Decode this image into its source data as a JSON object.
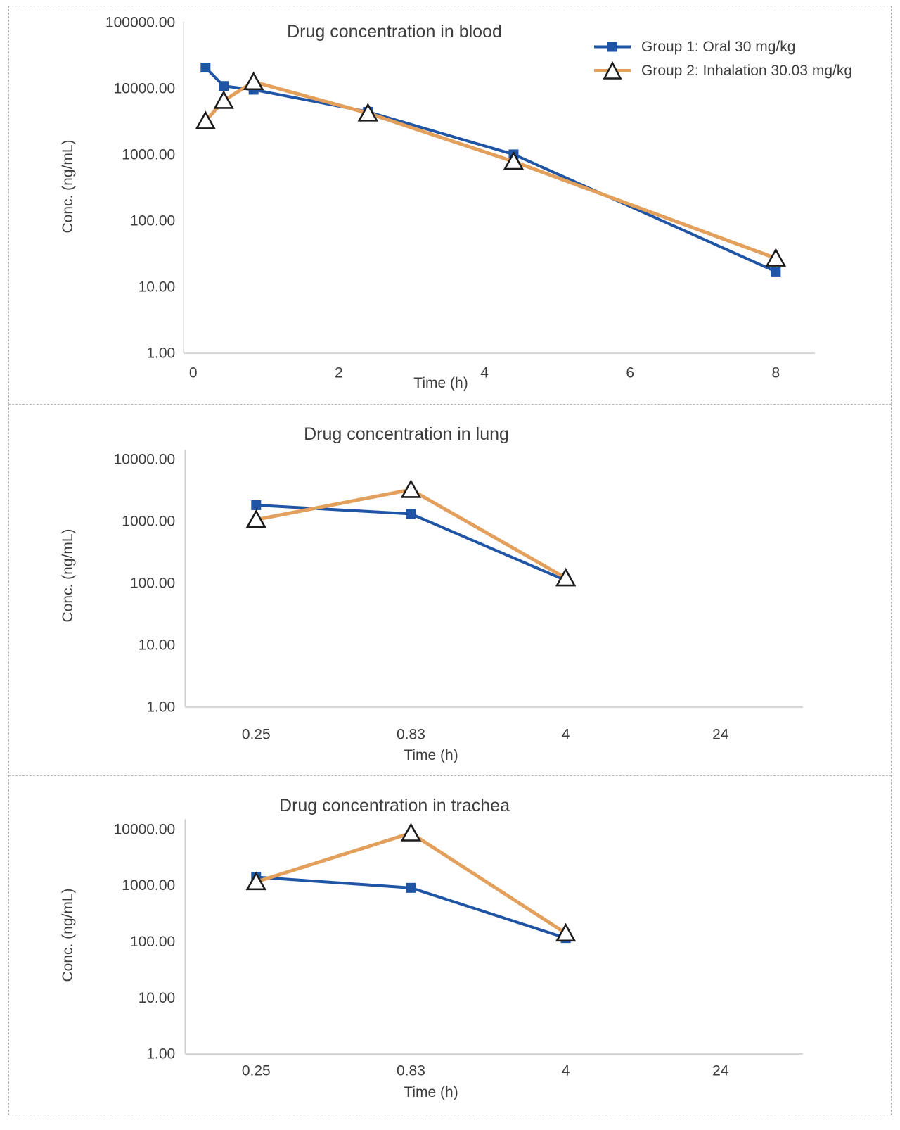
{
  "colors": {
    "group1": "#1F55A4",
    "group2": "#E2A05C",
    "marker_fill": "#FFFFFF",
    "marker_stroke": "#1C1C1C",
    "y_axis_line": "#D0D0D0",
    "x_axis_line": "#D6D6D6",
    "text": "#3D3D3D",
    "panel_border": "#B5B5B5"
  },
  "legend": {
    "items": [
      {
        "label": "Group 1: Oral 30 mg/kg"
      },
      {
        "label": "Group 2: Inhalation 30.03 mg/kg"
      }
    ]
  },
  "chart_data": [
    {
      "type": "line",
      "title": "Drug concentration in blood",
      "xlabel": "Time (h)",
      "ylabel": "Conc. (ng/mL)",
      "y_scale": "log10",
      "ylim": [
        1,
        100000
      ],
      "y_tick_labels": [
        "100000.00",
        "10000.00",
        "1000.00",
        "100.00",
        "10.00",
        "1.00"
      ],
      "x_axis": "linear",
      "xlim": [
        0,
        8.55
      ],
      "x_tick_values": [
        0,
        2,
        4,
        6,
        8
      ],
      "x_tick_labels": [
        "0",
        "2",
        "4",
        "6",
        "8"
      ],
      "grid": false,
      "legend_position": "top-right",
      "series": [
        {
          "name": "Group 1: Oral 30 mg/kg",
          "marker": "square",
          "x": [
            0.17,
            0.42,
            0.83,
            2.4,
            4.4,
            8
          ],
          "values": [
            20500,
            10800,
            9500,
            4400,
            1000,
            17
          ]
        },
        {
          "name": "Group 2: Inhalation 30.03 mg/kg",
          "marker": "triangle",
          "x": [
            0.17,
            0.42,
            0.83,
            2.4,
            4.4,
            8
          ],
          "values": [
            3200,
            6500,
            12500,
            4200,
            780,
            27
          ]
        }
      ]
    },
    {
      "type": "line",
      "title": "Drug concentration in lung",
      "xlabel": "Time (h)",
      "ylabel": "Conc. (ng/mL)",
      "y_scale": "log10",
      "ylim": [
        1,
        10000
      ],
      "y_tick_labels": [
        "10000.00",
        "1000.00",
        "100.00",
        "10.00",
        "1.00"
      ],
      "x_axis": "category",
      "categories": [
        "0.25",
        "0.83",
        "4",
        "24"
      ],
      "grid": false,
      "legend_position": "none",
      "series": [
        {
          "name": "Group 1: Oral 30 mg/kg",
          "marker": "square",
          "values": [
            1800,
            1300,
            110,
            null
          ]
        },
        {
          "name": "Group 2: Inhalation 30.03 mg/kg",
          "marker": "triangle",
          "values": [
            1050,
            3200,
            120,
            null
          ]
        }
      ]
    },
    {
      "type": "line",
      "title": "Drug concentration in trachea",
      "xlabel": "Time (h)",
      "ylabel": "Conc. (ng/mL)",
      "y_scale": "log10",
      "ylim": [
        1,
        10000
      ],
      "y_tick_labels": [
        "10000.00",
        "1000.00",
        "100.00",
        "10.00",
        "1.00"
      ],
      "x_axis": "category",
      "categories": [
        "0.25",
        "0.83",
        "4",
        "24"
      ],
      "grid": false,
      "legend_position": "none",
      "series": [
        {
          "name": "Group 1: Oral 30 mg/kg",
          "marker": "square",
          "values": [
            1400,
            900,
            115,
            null
          ]
        },
        {
          "name": "Group 2: Inhalation 30.03 mg/kg",
          "marker": "triangle",
          "values": [
            1150,
            8500,
            140,
            null
          ]
        }
      ]
    }
  ]
}
